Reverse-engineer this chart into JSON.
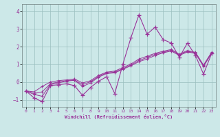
{
  "xlabel": "Windchill (Refroidissement éolien,°C)",
  "background_color": "#cce8e8",
  "grid_color": "#9bbfbf",
  "line_color": "#993399",
  "xlim": [
    -0.5,
    23.5
  ],
  "ylim": [
    -1.4,
    4.4
  ],
  "yticks": [
    -1,
    0,
    1,
    2,
    3,
    4
  ],
  "xticks": [
    0,
    1,
    2,
    3,
    4,
    5,
    6,
    7,
    8,
    9,
    10,
    11,
    12,
    13,
    14,
    15,
    16,
    17,
    18,
    19,
    20,
    21,
    22,
    23
  ],
  "x": [
    0,
    1,
    2,
    3,
    4,
    5,
    6,
    7,
    8,
    9,
    10,
    11,
    12,
    13,
    14,
    15,
    16,
    17,
    18,
    19,
    20,
    21,
    22,
    23
  ],
  "series_main": [
    -0.5,
    -0.9,
    -1.1,
    -0.2,
    -0.15,
    -0.1,
    -0.2,
    -0.75,
    -0.3,
    0.05,
    0.3,
    -0.65,
    1.0,
    2.5,
    3.8,
    2.7,
    3.1,
    2.4,
    2.2,
    1.4,
    2.2,
    1.5,
    0.45,
    1.6
  ],
  "series_line1": [
    -0.5,
    -0.7,
    -0.8,
    -0.15,
    -0.05,
    0.05,
    0.1,
    -0.25,
    -0.05,
    0.28,
    0.48,
    0.52,
    0.72,
    0.92,
    1.15,
    1.3,
    1.5,
    1.65,
    1.75,
    1.5,
    1.7,
    1.62,
    0.88,
    1.62
  ],
  "series_line2": [
    -0.5,
    -0.65,
    -0.55,
    -0.1,
    0.0,
    0.08,
    0.12,
    -0.15,
    0.02,
    0.32,
    0.52,
    0.56,
    0.76,
    0.96,
    1.22,
    1.38,
    1.56,
    1.68,
    1.8,
    1.54,
    1.74,
    1.65,
    0.92,
    1.65
  ],
  "series_line3": [
    -0.5,
    -0.55,
    -0.25,
    0.0,
    0.08,
    0.12,
    0.18,
    -0.05,
    0.08,
    0.38,
    0.56,
    0.62,
    0.82,
    1.02,
    1.3,
    1.46,
    1.62,
    1.74,
    1.84,
    1.58,
    1.78,
    1.68,
    0.96,
    1.68
  ]
}
